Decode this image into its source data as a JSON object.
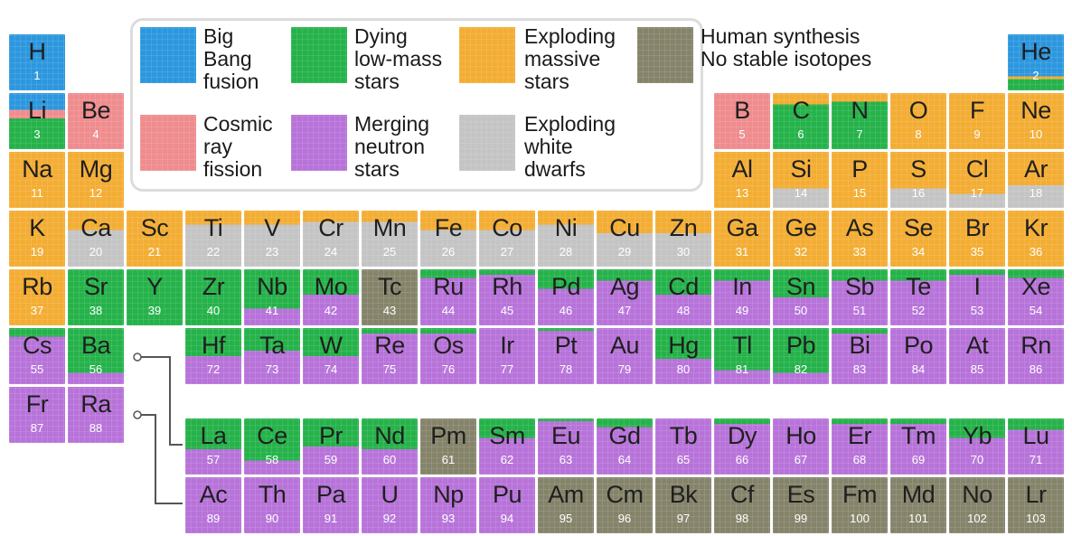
{
  "colors": {
    "bigbang": "#2c97de",
    "dying": "#25b24a",
    "massive": "#f3ad33",
    "synth": "#85836a",
    "cosmic": "#ef8c8e",
    "neutron": "#b773d9",
    "white": "#c4c4c4"
  },
  "legend": [
    {
      "key": "bigbang",
      "label": "Big\nBang\nfusion"
    },
    {
      "key": "dying",
      "label": "Dying\nlow-mass\nstars"
    },
    {
      "key": "massive",
      "label": "Exploding\nmassive\nstars"
    },
    {
      "key": "synth",
      "label": "Human synthesis\nNo stable isotopes"
    },
    {
      "key": "cosmic",
      "label": "Cosmic\nray\nfission"
    },
    {
      "key": "neutron",
      "label": "Merging\nneutron\nstars"
    },
    {
      "key": "white",
      "label": "Exploding\nwhite\ndwarfs"
    }
  ],
  "elements": [
    {
      "s": "H",
      "n": "1",
      "o": [
        [
          "bigbang",
          100
        ]
      ]
    },
    {
      "s": "He",
      "n": "2",
      "o": [
        [
          "bigbang",
          75
        ],
        [
          "massive",
          5
        ],
        [
          "dying",
          20
        ]
      ]
    },
    {
      "s": "Li",
      "n": "3",
      "o": [
        [
          "bigbang",
          30
        ],
        [
          "cosmic",
          15
        ],
        [
          "dying",
          55
        ]
      ]
    },
    {
      "s": "Be",
      "n": "4",
      "o": [
        [
          "cosmic",
          100
        ]
      ]
    },
    {
      "s": "B",
      "n": "5",
      "o": [
        [
          "cosmic",
          100
        ]
      ]
    },
    {
      "s": "C",
      "n": "6",
      "o": [
        [
          "massive",
          20
        ],
        [
          "dying",
          80
        ]
      ]
    },
    {
      "s": "N",
      "n": "7",
      "o": [
        [
          "massive",
          15
        ],
        [
          "dying",
          85
        ]
      ]
    },
    {
      "s": "O",
      "n": "8",
      "o": [
        [
          "massive",
          100
        ]
      ]
    },
    {
      "s": "F",
      "n": "9",
      "o": [
        [
          "massive",
          100
        ]
      ]
    },
    {
      "s": "Ne",
      "n": "10",
      "o": [
        [
          "massive",
          100
        ]
      ]
    },
    {
      "s": "Na",
      "n": "11",
      "o": [
        [
          "massive",
          100
        ]
      ]
    },
    {
      "s": "Mg",
      "n": "12",
      "o": [
        [
          "massive",
          100
        ]
      ]
    },
    {
      "s": "Al",
      "n": "13",
      "o": [
        [
          "massive",
          100
        ]
      ]
    },
    {
      "s": "Si",
      "n": "14",
      "o": [
        [
          "massive",
          65
        ],
        [
          "white",
          35
        ]
      ]
    },
    {
      "s": "P",
      "n": "15",
      "o": [
        [
          "massive",
          100
        ]
      ]
    },
    {
      "s": "S",
      "n": "16",
      "o": [
        [
          "massive",
          65
        ],
        [
          "white",
          35
        ]
      ]
    },
    {
      "s": "Cl",
      "n": "17",
      "o": [
        [
          "massive",
          75
        ],
        [
          "white",
          25
        ]
      ]
    },
    {
      "s": "Ar",
      "n": "18",
      "o": [
        [
          "massive",
          60
        ],
        [
          "white",
          40
        ]
      ]
    },
    {
      "s": "K",
      "n": "19",
      "o": [
        [
          "massive",
          100
        ]
      ]
    },
    {
      "s": "Ca",
      "n": "20",
      "o": [
        [
          "massive",
          35
        ],
        [
          "white",
          65
        ]
      ]
    },
    {
      "s": "Sc",
      "n": "21",
      "o": [
        [
          "massive",
          100
        ]
      ]
    },
    {
      "s": "Ti",
      "n": "22",
      "o": [
        [
          "massive",
          25
        ],
        [
          "white",
          75
        ]
      ]
    },
    {
      "s": "V",
      "n": "23",
      "o": [
        [
          "massive",
          25
        ],
        [
          "white",
          75
        ]
      ]
    },
    {
      "s": "Cr",
      "n": "24",
      "o": [
        [
          "massive",
          20
        ],
        [
          "white",
          80
        ]
      ]
    },
    {
      "s": "Mn",
      "n": "25",
      "o": [
        [
          "massive",
          20
        ],
        [
          "white",
          80
        ]
      ]
    },
    {
      "s": "Fe",
      "n": "26",
      "o": [
        [
          "massive",
          35
        ],
        [
          "white",
          65
        ]
      ]
    },
    {
      "s": "Co",
      "n": "27",
      "o": [
        [
          "massive",
          35
        ],
        [
          "white",
          65
        ]
      ]
    },
    {
      "s": "Ni",
      "n": "28",
      "o": [
        [
          "massive",
          25
        ],
        [
          "white",
          75
        ]
      ]
    },
    {
      "s": "Cu",
      "n": "29",
      "o": [
        [
          "massive",
          40
        ],
        [
          "white",
          60
        ]
      ]
    },
    {
      "s": "Zn",
      "n": "30",
      "o": [
        [
          "massive",
          40
        ],
        [
          "white",
          60
        ]
      ]
    },
    {
      "s": "Ga",
      "n": "31",
      "o": [
        [
          "massive",
          100
        ]
      ]
    },
    {
      "s": "Ge",
      "n": "32",
      "o": [
        [
          "massive",
          100
        ]
      ]
    },
    {
      "s": "As",
      "n": "33",
      "o": [
        [
          "massive",
          100
        ]
      ]
    },
    {
      "s": "Se",
      "n": "34",
      "o": [
        [
          "massive",
          100
        ]
      ]
    },
    {
      "s": "Br",
      "n": "35",
      "o": [
        [
          "massive",
          100
        ]
      ]
    },
    {
      "s": "Kr",
      "n": "36",
      "o": [
        [
          "massive",
          100
        ]
      ]
    },
    {
      "s": "Rb",
      "n": "37",
      "o": [
        [
          "massive",
          100
        ]
      ]
    },
    {
      "s": "Sr",
      "n": "38",
      "o": [
        [
          "dying",
          100
        ]
      ]
    },
    {
      "s": "Y",
      "n": "39",
      "o": [
        [
          "dying",
          100
        ]
      ]
    },
    {
      "s": "Zr",
      "n": "40",
      "o": [
        [
          "dying",
          100
        ]
      ]
    },
    {
      "s": "Nb",
      "n": "41",
      "o": [
        [
          "dying",
          70
        ],
        [
          "neutron",
          30
        ]
      ]
    },
    {
      "s": "Mo",
      "n": "42",
      "o": [
        [
          "dying",
          45
        ],
        [
          "neutron",
          55
        ]
      ]
    },
    {
      "s": "Tc",
      "n": "43",
      "o": [
        [
          "synth",
          100
        ]
      ]
    },
    {
      "s": "Ru",
      "n": "44",
      "o": [
        [
          "dying",
          15
        ],
        [
          "neutron",
          85
        ]
      ]
    },
    {
      "s": "Rh",
      "n": "45",
      "o": [
        [
          "dying",
          10
        ],
        [
          "neutron",
          90
        ]
      ]
    },
    {
      "s": "Pd",
      "n": "46",
      "o": [
        [
          "dying",
          35
        ],
        [
          "neutron",
          65
        ]
      ]
    },
    {
      "s": "Ag",
      "n": "47",
      "o": [
        [
          "dying",
          20
        ],
        [
          "neutron",
          80
        ]
      ]
    },
    {
      "s": "Cd",
      "n": "48",
      "o": [
        [
          "dying",
          45
        ],
        [
          "neutron",
          55
        ]
      ]
    },
    {
      "s": "In",
      "n": "49",
      "o": [
        [
          "dying",
          20
        ],
        [
          "neutron",
          80
        ]
      ]
    },
    {
      "s": "Sn",
      "n": "50",
      "o": [
        [
          "dying",
          50
        ],
        [
          "neutron",
          50
        ]
      ]
    },
    {
      "s": "Sb",
      "n": "51",
      "o": [
        [
          "dying",
          20
        ],
        [
          "neutron",
          80
        ]
      ]
    },
    {
      "s": "Te",
      "n": "52",
      "o": [
        [
          "dying",
          20
        ],
        [
          "neutron",
          80
        ]
      ]
    },
    {
      "s": "I",
      "n": "53",
      "o": [
        [
          "dying",
          10
        ],
        [
          "neutron",
          90
        ]
      ]
    },
    {
      "s": "Xe",
      "n": "54",
      "o": [
        [
          "dying",
          15
        ],
        [
          "neutron",
          85
        ]
      ]
    },
    {
      "s": "Cs",
      "n": "55",
      "o": [
        [
          "dying",
          15
        ],
        [
          "neutron",
          85
        ]
      ]
    },
    {
      "s": "Ba",
      "n": "56",
      "o": [
        [
          "dying",
          80
        ],
        [
          "neutron",
          20
        ]
      ]
    },
    {
      "s": "Hf",
      "n": "72",
      "o": [
        [
          "dying",
          50
        ],
        [
          "neutron",
          50
        ]
      ]
    },
    {
      "s": "Ta",
      "n": "73",
      "o": [
        [
          "dying",
          40
        ],
        [
          "neutron",
          60
        ]
      ]
    },
    {
      "s": "W",
      "n": "74",
      "o": [
        [
          "dying",
          50
        ],
        [
          "neutron",
          50
        ]
      ]
    },
    {
      "s": "Re",
      "n": "75",
      "o": [
        [
          "dying",
          10
        ],
        [
          "neutron",
          90
        ]
      ]
    },
    {
      "s": "Os",
      "n": "76",
      "o": [
        [
          "dying",
          10
        ],
        [
          "neutron",
          90
        ]
      ]
    },
    {
      "s": "Ir",
      "n": "77",
      "o": [
        [
          "neutron",
          100
        ]
      ]
    },
    {
      "s": "Pt",
      "n": "78",
      "o": [
        [
          "dying",
          5
        ],
        [
          "neutron",
          95
        ]
      ]
    },
    {
      "s": "Au",
      "n": "79",
      "o": [
        [
          "neutron",
          100
        ]
      ]
    },
    {
      "s": "Hg",
      "n": "80",
      "o": [
        [
          "dying",
          55
        ],
        [
          "neutron",
          45
        ]
      ]
    },
    {
      "s": "Tl",
      "n": "81",
      "o": [
        [
          "dying",
          75
        ],
        [
          "neutron",
          25
        ]
      ]
    },
    {
      "s": "Pb",
      "n": "82",
      "o": [
        [
          "dying",
          80
        ],
        [
          "neutron",
          20
        ]
      ]
    },
    {
      "s": "Bi",
      "n": "83",
      "o": [
        [
          "dying",
          10
        ],
        [
          "neutron",
          90
        ]
      ]
    },
    {
      "s": "Po",
      "n": "84",
      "o": [
        [
          "neutron",
          100
        ]
      ]
    },
    {
      "s": "At",
      "n": "85",
      "o": [
        [
          "neutron",
          100
        ]
      ]
    },
    {
      "s": "Rn",
      "n": "86",
      "o": [
        [
          "neutron",
          100
        ]
      ]
    },
    {
      "s": "Fr",
      "n": "87",
      "o": [
        [
          "neutron",
          100
        ]
      ]
    },
    {
      "s": "Ra",
      "n": "88",
      "o": [
        [
          "neutron",
          100
        ]
      ]
    },
    {
      "s": "La",
      "n": "57",
      "o": [
        [
          "dying",
          55
        ],
        [
          "neutron",
          45
        ]
      ]
    },
    {
      "s": "Ce",
      "n": "58",
      "o": [
        [
          "dying",
          75
        ],
        [
          "neutron",
          25
        ]
      ]
    },
    {
      "s": "Pr",
      "n": "59",
      "o": [
        [
          "dying",
          50
        ],
        [
          "neutron",
          50
        ]
      ]
    },
    {
      "s": "Nd",
      "n": "60",
      "o": [
        [
          "dying",
          55
        ],
        [
          "neutron",
          45
        ]
      ]
    },
    {
      "s": "Pm",
      "n": "61",
      "o": [
        [
          "synth",
          100
        ]
      ]
    },
    {
      "s": "Sm",
      "n": "62",
      "o": [
        [
          "dying",
          35
        ],
        [
          "neutron",
          65
        ]
      ]
    },
    {
      "s": "Eu",
      "n": "63",
      "o": [
        [
          "dying",
          5
        ],
        [
          "neutron",
          95
        ]
      ]
    },
    {
      "s": "Gd",
      "n": "64",
      "o": [
        [
          "dying",
          15
        ],
        [
          "neutron",
          85
        ]
      ]
    },
    {
      "s": "Tb",
      "n": "65",
      "o": [
        [
          "neutron",
          100
        ]
      ]
    },
    {
      "s": "Dy",
      "n": "66",
      "o": [
        [
          "dying",
          10
        ],
        [
          "neutron",
          90
        ]
      ]
    },
    {
      "s": "Ho",
      "n": "67",
      "o": [
        [
          "neutron",
          100
        ]
      ]
    },
    {
      "s": "Er",
      "n": "68",
      "o": [
        [
          "dying",
          10
        ],
        [
          "neutron",
          90
        ]
      ]
    },
    {
      "s": "Tm",
      "n": "69",
      "o": [
        [
          "dying",
          10
        ],
        [
          "neutron",
          90
        ]
      ]
    },
    {
      "s": "Yb",
      "n": "70",
      "o": [
        [
          "dying",
          35
        ],
        [
          "neutron",
          65
        ]
      ]
    },
    {
      "s": "Lu",
      "n": "71",
      "o": [
        [
          "dying",
          20
        ],
        [
          "neutron",
          80
        ]
      ]
    },
    {
      "s": "Ac",
      "n": "89",
      "o": [
        [
          "neutron",
          100
        ]
      ]
    },
    {
      "s": "Th",
      "n": "90",
      "o": [
        [
          "neutron",
          100
        ]
      ]
    },
    {
      "s": "Pa",
      "n": "91",
      "o": [
        [
          "neutron",
          100
        ]
      ]
    },
    {
      "s": "U",
      "n": "92",
      "o": [
        [
          "neutron",
          100
        ]
      ]
    },
    {
      "s": "Np",
      "n": "93",
      "o": [
        [
          "neutron",
          100
        ]
      ]
    },
    {
      "s": "Pu",
      "n": "94",
      "o": [
        [
          "neutron",
          100
        ]
      ]
    },
    {
      "s": "Am",
      "n": "95",
      "o": [
        [
          "synth",
          100
        ]
      ]
    },
    {
      "s": "Cm",
      "n": "96",
      "o": [
        [
          "synth",
          100
        ]
      ]
    },
    {
      "s": "Bk",
      "n": "97",
      "o": [
        [
          "synth",
          100
        ]
      ]
    },
    {
      "s": "Cf",
      "n": "98",
      "o": [
        [
          "synth",
          100
        ]
      ]
    },
    {
      "s": "Es",
      "n": "99",
      "o": [
        [
          "synth",
          100
        ]
      ]
    },
    {
      "s": "Fm",
      "n": "100",
      "o": [
        [
          "synth",
          100
        ]
      ]
    },
    {
      "s": "Md",
      "n": "101",
      "o": [
        [
          "synth",
          100
        ]
      ]
    },
    {
      "s": "No",
      "n": "102",
      "o": [
        [
          "synth",
          100
        ]
      ]
    },
    {
      "s": "Lr",
      "n": "103",
      "o": [
        [
          "synth",
          100
        ]
      ]
    }
  ]
}
